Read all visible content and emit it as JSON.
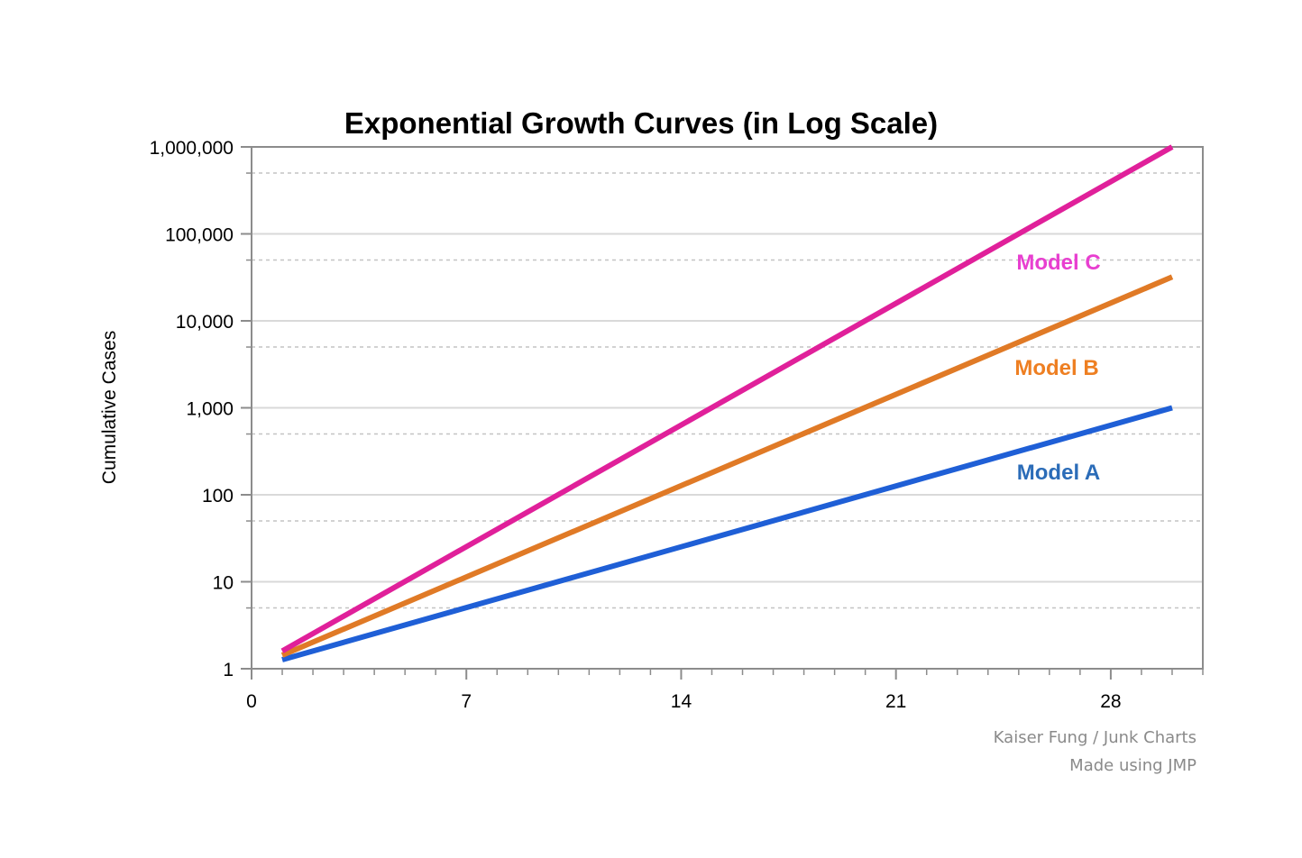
{
  "chart_data": {
    "type": "line",
    "title": "Exponential Growth Curves (in Log Scale)",
    "xlabel": "",
    "ylabel": "Cumulative Cases",
    "y_scale": "log",
    "xlim": [
      0,
      31
    ],
    "ylim": [
      1,
      1000000
    ],
    "x_ticks": [
      "0",
      "7",
      "14",
      "21",
      "28"
    ],
    "x_tick_values": [
      0,
      7,
      14,
      21,
      28
    ],
    "y_ticks": [
      "1",
      "10",
      "100",
      "1,000",
      "10,000",
      "100,000",
      "1,000,000"
    ],
    "y_tick_values": [
      1,
      10,
      100,
      1000,
      10000,
      100000,
      1000000
    ],
    "grid": true,
    "series": [
      {
        "name": "Model A",
        "color": "#1f5fd6",
        "label_color": "#2b6cb8",
        "x": [
          1,
          30
        ],
        "y": [
          1.27,
          1000
        ]
      },
      {
        "name": "Model B",
        "color": "#e07a26",
        "label_color": "#ee7f22",
        "x": [
          1,
          30
        ],
        "y": [
          1.43,
          32000
        ]
      },
      {
        "name": "Model C",
        "color": "#e0209a",
        "label_color": "#e83fd0",
        "x": [
          1,
          30
        ],
        "y": [
          1.6,
          1000000
        ]
      }
    ],
    "annotations": [
      "Kaiser Fung / Junk Charts",
      "Made using JMP"
    ]
  }
}
